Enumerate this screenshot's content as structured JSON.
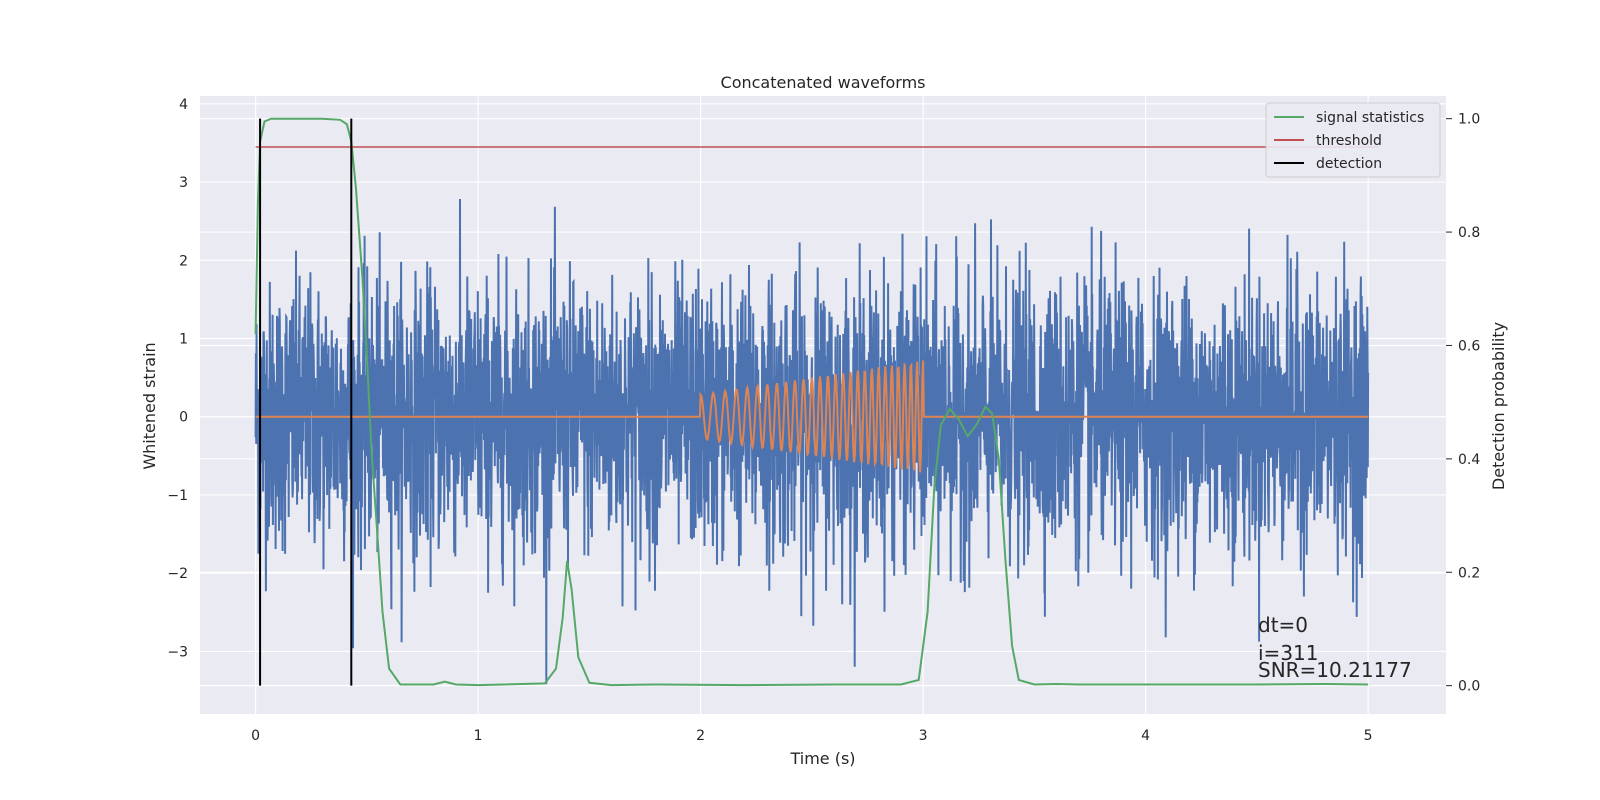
{
  "chart_data": {
    "type": "line",
    "title": "Concatenated waveforms",
    "xlabel": "Time (s)",
    "ylabel": "Whitened strain",
    "ylabel_right": "Detection probability",
    "xlim": [
      -0.25,
      5.35
    ],
    "ylim": [
      -3.8,
      4.1
    ],
    "ylim_right": [
      -0.05,
      1.04
    ],
    "xticks": [
      0,
      1,
      2,
      3,
      4,
      5
    ],
    "xtick_labels": [
      "0",
      "1",
      "2",
      "3",
      "4",
      "5"
    ],
    "yticks": [
      -3,
      -2,
      -1,
      0,
      1,
      2,
      3,
      4
    ],
    "ytick_labels": [
      "−3",
      "−2",
      "−1",
      "0",
      "1",
      "2",
      "3",
      "4"
    ],
    "yticks_right": [
      0.0,
      0.2,
      0.4,
      0.6,
      0.8,
      1.0
    ],
    "ytick_labels_right": [
      "0.0",
      "0.2",
      "0.4",
      "0.6",
      "0.8",
      "1.0"
    ],
    "grid": true,
    "legend_position": "top-right",
    "colors": {
      "strain": "#4c72b0",
      "template": "#dd8452",
      "signal_statistics": "#55a868",
      "threshold": "#c44e52",
      "detection": "#000000",
      "background": "#eaeaf2",
      "grid": "#ffffff"
    },
    "series": [
      {
        "name": "",
        "role": "strain",
        "axis": "left",
        "x_range": [
          0,
          5
        ],
        "typical_amplitude": 0.85,
        "peak_range": [
          -3.5,
          3.7
        ]
      },
      {
        "name": "",
        "role": "template",
        "axis": "left",
        "x_range": [
          0,
          5
        ],
        "chirp_start": 2.0,
        "chirp_end": 3.0,
        "start_amplitude": 0.28,
        "end_amplitude": 0.72
      },
      {
        "name": "signal statistics",
        "role": "signal_statistics",
        "axis": "right",
        "x": [
          0,
          0.01,
          0.02,
          0.04,
          0.07,
          0.1,
          0.2,
          0.3,
          0.38,
          0.41,
          0.43,
          0.45,
          0.48,
          0.5,
          0.52,
          0.55,
          0.57,
          0.6,
          0.65,
          0.8,
          0.85,
          0.9,
          1.0,
          1.3,
          1.35,
          1.38,
          1.4,
          1.42,
          1.45,
          1.5,
          1.6,
          1.8,
          2.2,
          2.6,
          2.9,
          2.98,
          3.02,
          3.05,
          3.08,
          3.12,
          3.16,
          3.2,
          3.24,
          3.28,
          3.31,
          3.34,
          3.37,
          3.4,
          3.43,
          3.5,
          3.6,
          3.7,
          3.8,
          4.5,
          4.8,
          5.0
        ],
        "y": [
          0.62,
          0.85,
          0.96,
          0.995,
          1.0,
          1.0,
          1.0,
          1.0,
          0.998,
          0.99,
          0.96,
          0.88,
          0.72,
          0.58,
          0.42,
          0.25,
          0.13,
          0.03,
          0.002,
          0.002,
          0.007,
          0.002,
          0.001,
          0.004,
          0.03,
          0.12,
          0.22,
          0.17,
          0.05,
          0.005,
          0.001,
          0.002,
          0.001,
          0.002,
          0.002,
          0.01,
          0.13,
          0.35,
          0.46,
          0.488,
          0.47,
          0.44,
          0.46,
          0.492,
          0.48,
          0.4,
          0.22,
          0.07,
          0.01,
          0.002,
          0.003,
          0.002,
          0.002,
          0.002,
          0.003,
          0.002
        ]
      },
      {
        "name": "threshold",
        "role": "threshold",
        "axis": "right",
        "x": [
          0,
          5.05
        ],
        "y": [
          0.95,
          0.95
        ]
      },
      {
        "name": "detection",
        "role": "detection",
        "axis": "right",
        "vlines_x": [
          0.02,
          0.43
        ],
        "vline_ymin": 0.0,
        "vline_ymax": 1.0
      }
    ],
    "annotations": [
      "dt=0",
      "i=311",
      "SNR=10.21177"
    ]
  }
}
